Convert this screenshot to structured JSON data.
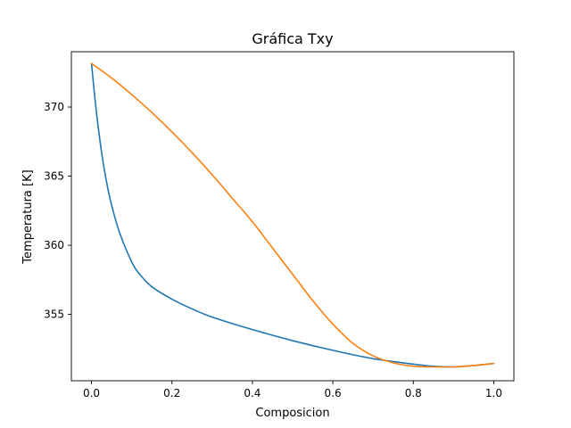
{
  "chart_data": {
    "type": "line",
    "title": "Gráfica Txy",
    "xlabel": "Composicion",
    "ylabel": "Temperatura [K]",
    "xlim": [
      -0.05,
      1.05
    ],
    "ylim": [
      350.2,
      374.0
    ],
    "xticks": [
      0.0,
      0.2,
      0.4,
      0.6,
      0.8,
      1.0
    ],
    "xtick_labels": [
      "0.0",
      "0.2",
      "0.4",
      "0.6",
      "0.8",
      "1.0"
    ],
    "yticks": [
      355,
      360,
      365,
      370
    ],
    "ytick_labels": [
      "355",
      "360",
      "365",
      "370"
    ],
    "grid": false,
    "series": [
      {
        "color": "#1f77b4",
        "x": [
          0.0,
          0.01,
          0.02,
          0.03,
          0.04,
          0.05,
          0.07,
          0.1,
          0.12,
          0.15,
          0.2,
          0.25,
          0.3,
          0.4,
          0.5,
          0.6,
          0.7,
          0.8,
          0.85,
          0.9,
          0.95,
          1.0
        ],
        "y": [
          373.15,
          370.2,
          367.8,
          365.8,
          364.2,
          362.9,
          360.9,
          358.8,
          357.9,
          357.0,
          356.1,
          355.4,
          354.8,
          353.9,
          353.1,
          352.4,
          351.8,
          351.4,
          351.25,
          351.2,
          351.3,
          351.45
        ]
      },
      {
        "color": "#ff7f0e",
        "x": [
          0.0,
          0.05,
          0.1,
          0.15,
          0.2,
          0.25,
          0.3,
          0.35,
          0.4,
          0.45,
          0.5,
          0.55,
          0.6,
          0.65,
          0.7,
          0.75,
          0.8,
          0.85,
          0.88,
          0.9,
          0.95,
          1.0
        ],
        "y": [
          373.15,
          372.1,
          370.9,
          369.6,
          368.2,
          366.7,
          365.1,
          363.4,
          361.7,
          359.8,
          357.9,
          356.0,
          354.3,
          352.9,
          352.0,
          351.5,
          351.25,
          351.2,
          351.2,
          351.2,
          351.3,
          351.45
        ]
      }
    ]
  }
}
